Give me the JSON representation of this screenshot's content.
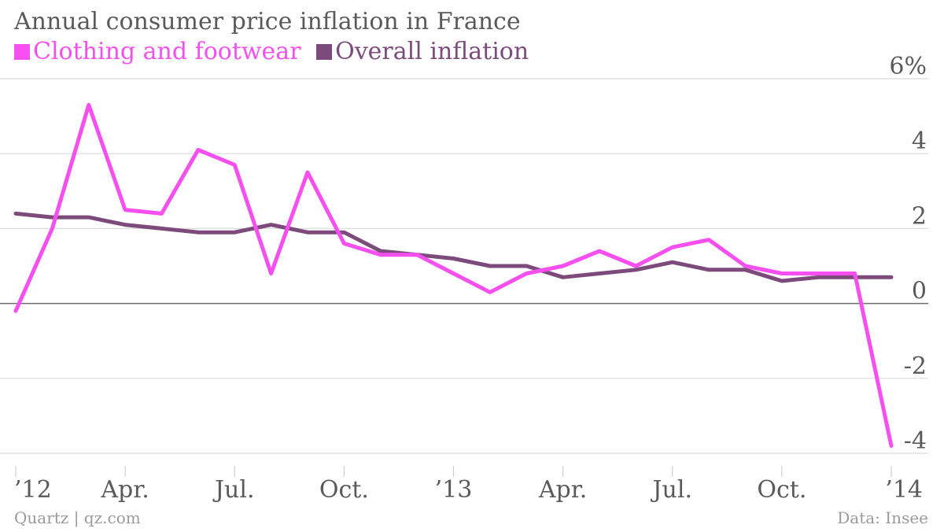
{
  "chart_data": {
    "type": "line",
    "title": "Annual consumer price inflation in France",
    "y_unit_suffix": "%",
    "ylim": [
      -4,
      6
    ],
    "yticks": [
      -4,
      -2,
      0,
      2,
      4,
      6
    ],
    "x": [
      "2012-01",
      "2012-02",
      "2012-03",
      "2012-04",
      "2012-05",
      "2012-06",
      "2012-07",
      "2012-08",
      "2012-09",
      "2012-10",
      "2012-11",
      "2012-12",
      "2013-01",
      "2013-02",
      "2013-03",
      "2013-04",
      "2013-05",
      "2013-06",
      "2013-07",
      "2013-08",
      "2013-09",
      "2013-10",
      "2013-11",
      "2013-12",
      "2014-01"
    ],
    "xticks": [
      {
        "x": "2012-01",
        "label": "’12"
      },
      {
        "x": "2012-04",
        "label": "Apr."
      },
      {
        "x": "2012-07",
        "label": "Jul."
      },
      {
        "x": "2012-10",
        "label": "Oct."
      },
      {
        "x": "2013-01",
        "label": "’13"
      },
      {
        "x": "2013-04",
        "label": "Apr."
      },
      {
        "x": "2013-07",
        "label": "Jul."
      },
      {
        "x": "2013-10",
        "label": "Oct."
      },
      {
        "x": "2014-01",
        "label": "’14"
      }
    ],
    "series": [
      {
        "name": "Clothing and footwear",
        "color": "#f54ff0",
        "values": [
          -0.2,
          2.0,
          5.3,
          2.5,
          2.4,
          4.1,
          3.7,
          0.8,
          3.5,
          1.6,
          1.3,
          1.3,
          0.8,
          0.3,
          0.8,
          1.0,
          1.4,
          1.0,
          1.5,
          1.7,
          1.0,
          0.8,
          0.8,
          0.8,
          -3.8
        ]
      },
      {
        "name": "Overall inflation",
        "color": "#7d4a7c",
        "values": [
          2.4,
          2.3,
          2.3,
          2.1,
          2.0,
          1.9,
          1.9,
          2.1,
          1.9,
          1.9,
          1.4,
          1.3,
          1.2,
          1.0,
          1.0,
          0.7,
          0.8,
          0.9,
          1.1,
          0.9,
          0.9,
          0.6,
          0.7,
          0.7,
          0.7
        ]
      }
    ],
    "grid": true,
    "source_left": "Quartz | qz.com",
    "source_right": "Data: Insee"
  }
}
